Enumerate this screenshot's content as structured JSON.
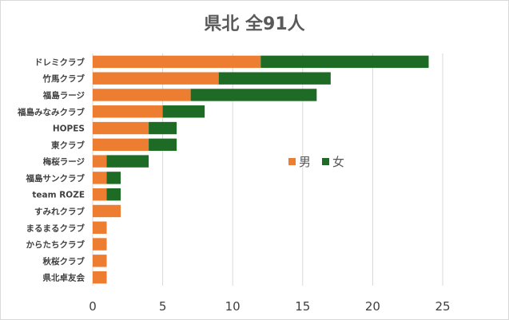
{
  "chart_data": {
    "type": "bar",
    "orientation": "horizontal",
    "stacked": true,
    "title": "県北 全91人",
    "categories": [
      "ドレミクラブ",
      "竹馬クラブ",
      "福島ラージ",
      "福島みなみクラブ",
      "HOPES",
      "東クラブ",
      "梅桜ラージ",
      "福島サンクラブ",
      "team ROZE",
      "すみれクラブ",
      "まるまるクラブ",
      "からたちクラブ",
      "秋桜クラブ",
      "県北卓友会"
    ],
    "series": [
      {
        "name": "男",
        "color": "#ED7D31",
        "values": [
          12,
          9,
          7,
          5,
          4,
          4,
          1,
          1,
          1,
          2,
          1,
          1,
          1,
          1
        ]
      },
      {
        "name": "女",
        "color": "#1E6B25",
        "values": [
          12,
          8,
          9,
          3,
          2,
          2,
          3,
          1,
          1,
          0,
          0,
          0,
          0,
          0
        ]
      }
    ],
    "xlim": [
      0,
      25
    ],
    "xticks": [
      0,
      5,
      10,
      15,
      20,
      25
    ],
    "grid": true,
    "legend_position": "right-middle"
  }
}
